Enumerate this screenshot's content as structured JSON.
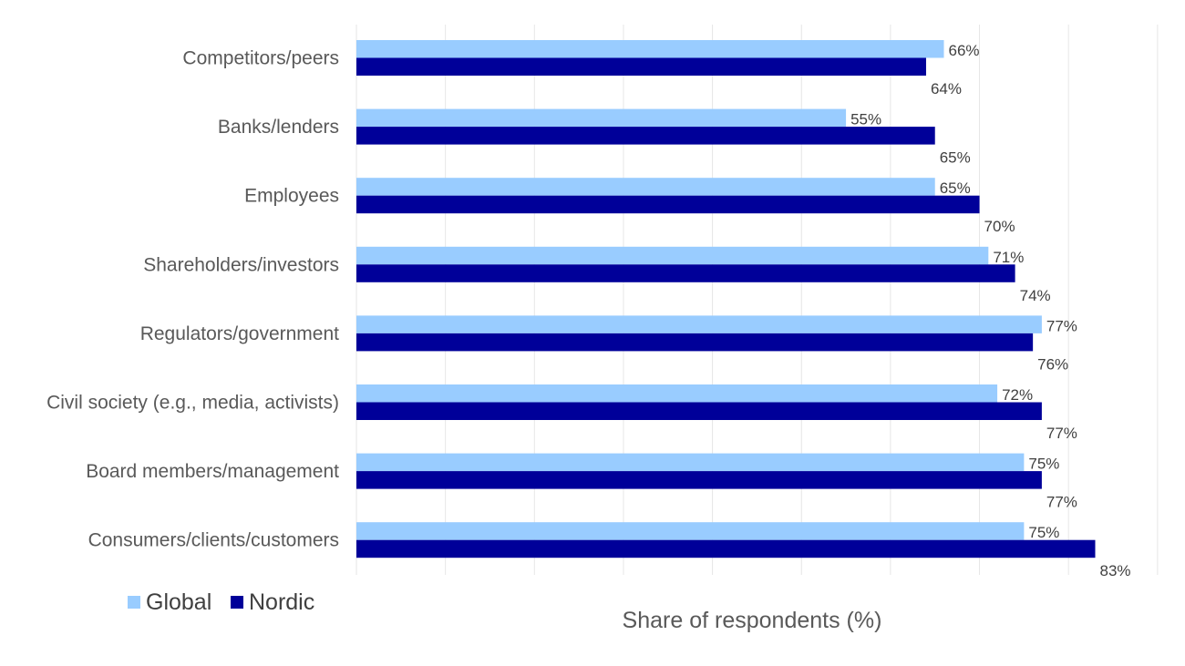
{
  "chart_data": {
    "type": "bar",
    "orientation": "horizontal",
    "categories": [
      "Competitors/peers",
      "Banks/lenders",
      "Employees",
      "Shareholders/investors",
      "Regulators/government",
      "Civil society (e.g., media, activists)",
      "Board members/management",
      "Consumers/clients/customers"
    ],
    "series": [
      {
        "name": "Global",
        "color": "#99ccff",
        "values": [
          66,
          55,
          65,
          71,
          77,
          72,
          75,
          75
        ],
        "labels": [
          "66%",
          "55%",
          "65%",
          "71%",
          "77%",
          "72%",
          "75%",
          "75%"
        ]
      },
      {
        "name": "Nordic",
        "color": "#000099",
        "values": [
          64,
          65,
          70,
          74,
          76,
          77,
          77,
          83
        ],
        "labels": [
          "64%",
          "65%",
          "70%",
          "74%",
          "76%",
          "77%",
          "77%",
          "83%"
        ]
      }
    ],
    "xlabel": "Share of respondents (%)",
    "xlim": [
      0,
      90
    ],
    "grid": true,
    "legend_position": "bottom-left"
  }
}
